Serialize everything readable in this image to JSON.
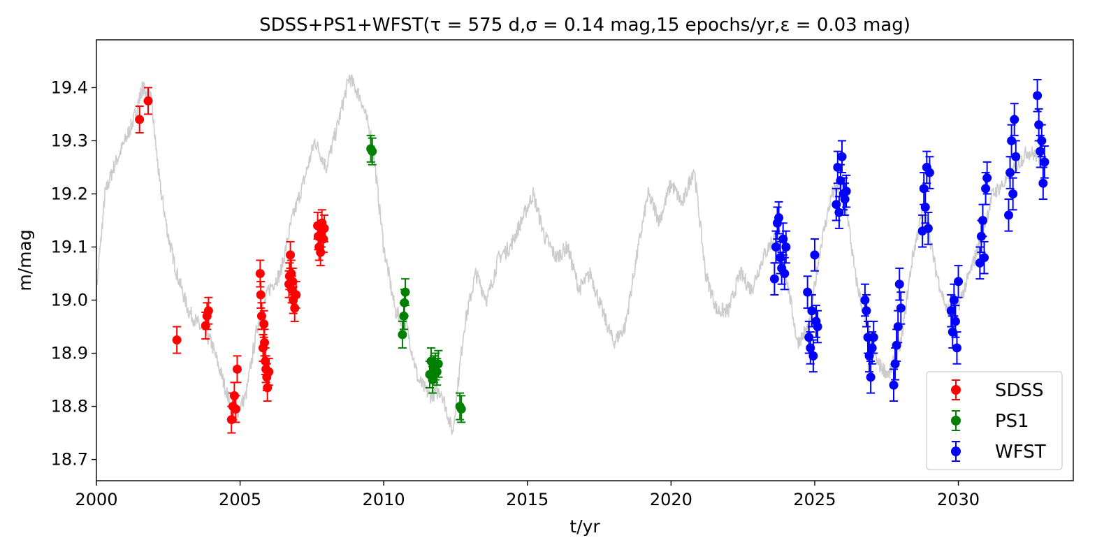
{
  "chart_data": {
    "type": "scatter",
    "title": "SDSS+PS1+WFST(τ = 575 d,σ = 0.14 mag,15 epochs/yr,ε = 0.03 mag)",
    "xlabel": "t/yr",
    "ylabel": "m/mag",
    "xlim": [
      2000,
      2034
    ],
    "ylim": [
      18.66,
      19.49
    ],
    "x_ticks": [
      2000,
      2005,
      2010,
      2015,
      2020,
      2025,
      2030
    ],
    "y_ticks": [
      18.7,
      18.8,
      18.9,
      19.0,
      19.1,
      19.2,
      19.3,
      19.4
    ],
    "grid": false,
    "legend_position": "bottom-right",
    "underlying_curve": {
      "color": "#cccccc",
      "x": [
        2000.0,
        2000.3,
        2000.6,
        2001.0,
        2001.3,
        2001.6,
        2001.9,
        2002.2,
        2002.5,
        2002.8,
        2003.2,
        2003.6,
        2004.0,
        2004.4,
        2004.8,
        2005.2,
        2005.6,
        2006.0,
        2006.4,
        2006.8,
        2007.2,
        2007.6,
        2008.0,
        2008.4,
        2008.8,
        2009.2,
        2009.6,
        2010.0,
        2010.4,
        2010.8,
        2011.2,
        2011.6,
        2012.0,
        2012.4,
        2012.8,
        2013.2,
        2013.6,
        2014.0,
        2014.4,
        2014.8,
        2015.2,
        2015.6,
        2016.0,
        2016.4,
        2016.8,
        2017.2,
        2017.6,
        2018.0,
        2018.4,
        2018.8,
        2019.2,
        2019.6,
        2020.0,
        2020.4,
        2020.8,
        2021.2,
        2021.6,
        2022.0,
        2022.4,
        2022.8,
        2023.2,
        2023.6,
        2024.0,
        2024.4,
        2024.8,
        2025.2,
        2025.6,
        2026.0,
        2026.4,
        2026.8,
        2027.2,
        2027.6,
        2028.0,
        2028.4,
        2028.8,
        2029.2,
        2029.6,
        2030.0,
        2030.4,
        2030.8,
        2031.2,
        2031.6,
        2032.0,
        2032.4,
        2032.8,
        2033.0
      ],
      "y": [
        19.02,
        19.2,
        19.25,
        19.3,
        19.34,
        19.4,
        19.38,
        19.22,
        19.12,
        19.05,
        18.98,
        18.95,
        18.92,
        18.85,
        18.78,
        18.82,
        18.95,
        19.02,
        19.05,
        19.15,
        19.22,
        19.3,
        19.25,
        19.33,
        19.42,
        19.38,
        19.3,
        19.1,
        18.98,
        18.95,
        18.85,
        18.82,
        18.83,
        18.75,
        18.95,
        19.05,
        19.0,
        19.08,
        19.1,
        19.15,
        19.2,
        19.12,
        19.08,
        19.1,
        19.02,
        19.05,
        18.98,
        18.92,
        18.95,
        19.08,
        19.2,
        19.15,
        19.22,
        19.18,
        19.25,
        19.05,
        18.98,
        18.98,
        19.05,
        19.02,
        19.08,
        19.12,
        19.05,
        18.92,
        18.95,
        19.1,
        19.2,
        19.22,
        19.05,
        18.95,
        18.88,
        18.86,
        18.92,
        19.08,
        19.18,
        19.06,
        18.98,
        18.99,
        19.05,
        19.12,
        19.2,
        19.22,
        19.25,
        19.28,
        19.27,
        19.25
      ]
    },
    "series": [
      {
        "name": "SDSS",
        "color": "#ff0000",
        "error": 0.025,
        "x": [
          2001.5,
          2001.8,
          2002.8,
          2003.8,
          2003.85,
          2003.9,
          2004.7,
          2004.75,
          2004.8,
          2004.85,
          2004.9,
          2005.7,
          2005.72,
          2005.75,
          2005.8,
          2005.83,
          2005.85,
          2005.88,
          2005.9,
          2005.93,
          2005.95,
          2006.0,
          2006.7,
          2006.72,
          2006.75,
          2006.78,
          2006.8,
          2006.83,
          2006.85,
          2006.9,
          2006.95,
          2007.7,
          2007.72,
          2007.75,
          2007.8,
          2007.83,
          2007.85,
          2007.9,
          2007.93
        ],
        "y": [
          19.34,
          19.375,
          18.925,
          18.952,
          18.97,
          18.98,
          18.775,
          18.8,
          18.82,
          18.795,
          18.87,
          19.05,
          19.01,
          18.97,
          18.91,
          18.955,
          18.92,
          18.885,
          18.87,
          18.855,
          18.835,
          18.865,
          19.03,
          19.045,
          19.085,
          19.05,
          19.02,
          19.035,
          19.0,
          18.985,
          19.01,
          19.14,
          19.12,
          19.1,
          19.09,
          19.125,
          19.145,
          19.115,
          19.135
        ]
      },
      {
        "name": "PS1",
        "color": "#008000",
        "error": 0.025,
        "x": [
          2009.55,
          2009.6,
          2010.65,
          2010.7,
          2010.72,
          2010.75,
          2011.6,
          2011.65,
          2011.7,
          2011.75,
          2011.8,
          2011.85,
          2011.9,
          2012.65,
          2012.7
        ],
        "y": [
          19.285,
          19.28,
          18.935,
          18.97,
          18.995,
          19.015,
          18.86,
          18.885,
          18.85,
          18.87,
          18.875,
          18.865,
          18.88,
          18.8,
          18.795
        ]
      },
      {
        "name": "WFST",
        "color": "#0000ff",
        "error": 0.03,
        "x": [
          2023.6,
          2023.65,
          2023.7,
          2023.75,
          2023.8,
          2023.85,
          2023.9,
          2023.95,
          2024.0,
          2024.75,
          2024.8,
          2024.85,
          2024.9,
          2024.95,
          2025.0,
          2025.05,
          2025.1,
          2025.75,
          2025.8,
          2025.85,
          2025.9,
          2025.95,
          2026.0,
          2026.05,
          2026.1,
          2026.75,
          2026.8,
          2026.85,
          2026.9,
          2026.95,
          2027.0,
          2027.05,
          2027.75,
          2027.8,
          2027.85,
          2027.9,
          2027.95,
          2028.0,
          2028.75,
          2028.8,
          2028.85,
          2028.9,
          2028.95,
          2029.0,
          2029.75,
          2029.8,
          2029.85,
          2029.9,
          2029.95,
          2030.0,
          2030.75,
          2030.8,
          2030.85,
          2030.9,
          2030.95,
          2031.0,
          2031.75,
          2031.8,
          2031.85,
          2031.9,
          2031.95,
          2032.0,
          2032.75,
          2032.8,
          2032.85,
          2032.9,
          2032.95,
          2033.0
        ],
        "y": [
          19.04,
          19.1,
          19.145,
          19.155,
          19.08,
          19.06,
          19.115,
          19.05,
          19.1,
          19.015,
          18.93,
          18.91,
          18.98,
          18.895,
          19.085,
          18.96,
          18.95,
          19.18,
          19.25,
          19.165,
          19.225,
          19.27,
          19.2,
          19.19,
          19.205,
          19.0,
          18.98,
          18.93,
          18.895,
          18.855,
          18.91,
          18.93,
          18.84,
          18.88,
          18.915,
          18.95,
          19.03,
          18.985,
          19.13,
          19.21,
          19.175,
          19.25,
          19.135,
          19.24,
          18.98,
          18.94,
          19.0,
          18.96,
          18.91,
          19.035,
          19.07,
          19.12,
          19.15,
          19.08,
          19.21,
          19.23,
          19.16,
          19.24,
          19.3,
          19.2,
          19.34,
          19.27,
          19.385,
          19.33,
          19.28,
          19.3,
          19.22,
          19.26
        ]
      }
    ]
  }
}
